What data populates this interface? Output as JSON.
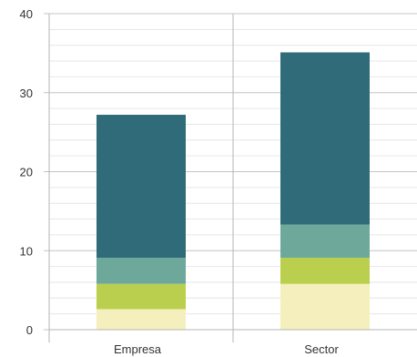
{
  "chart_data": {
    "type": "bar",
    "stacked": true,
    "categories": [
      "Empresa",
      "Sector"
    ],
    "series": [
      {
        "values": [
          2.6,
          5.8
        ],
        "color": "#f4efbd"
      },
      {
        "values": [
          3.2,
          3.3
        ],
        "color": "#bacf4e"
      },
      {
        "values": [
          3.3,
          4.2
        ],
        "color": "#6da89a"
      },
      {
        "values": [
          18.1,
          21.8
        ],
        "color": "#2f6b78"
      }
    ],
    "title": "",
    "xlabel": "",
    "ylabel": "",
    "ylim": [
      0,
      40
    ],
    "yticks": [
      0,
      10,
      20,
      30,
      40
    ],
    "ytick_labels": [
      "0",
      "10",
      "20",
      "30",
      "40"
    ],
    "minor_gridlines_per_major": 5,
    "grid": true,
    "legend": "none"
  }
}
